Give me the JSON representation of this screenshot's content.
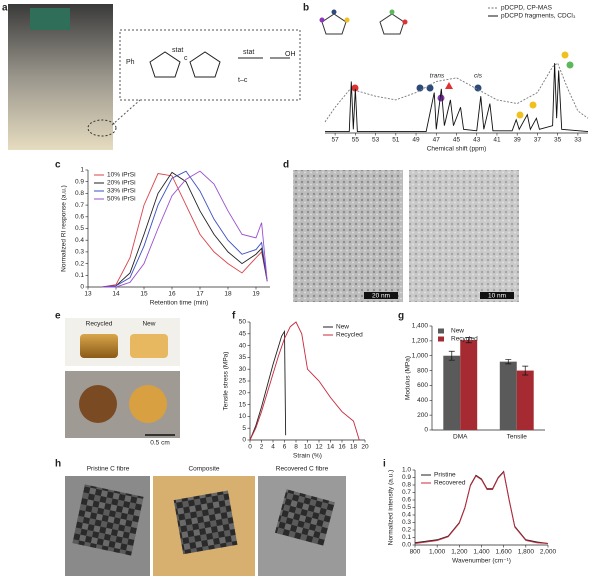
{
  "panels": [
    "a",
    "b",
    "c",
    "d",
    "e",
    "f",
    "g",
    "h",
    "i"
  ],
  "photo_labels": {
    "a": [
      "Ph",
      "stat",
      "c",
      "stat",
      "t–c",
      "OH"
    ],
    "d": [
      "20 nm",
      "10 nm"
    ],
    "e": [
      "Recycled",
      "New",
      "0.5 cm"
    ],
    "h": [
      "Pristine C fibre",
      "Composite",
      "Recovered C fibre"
    ]
  },
  "chart_data": [
    {
      "type": "line",
      "xlabel": "Chemical shift (ppm)",
      "xlim": [
        58,
        32
      ],
      "ylim": [
        0,
        1.4
      ],
      "xticks": [
        57,
        55,
        53,
        51,
        49,
        47,
        45,
        43,
        41,
        39,
        37,
        35,
        33
      ],
      "annotations": [
        "trans",
        "cis"
      ],
      "legend": "upper right",
      "series": [
        {
          "name": "pDCPD, CP-MAS",
          "color": "#777777",
          "style": "dashed",
          "x": [
            58,
            57,
            55.5,
            53,
            51,
            49,
            47,
            45,
            43,
            41,
            39,
            37,
            35.5,
            35,
            34,
            33,
            32
          ],
          "values": [
            0.15,
            0.35,
            0.6,
            0.5,
            0.45,
            0.55,
            0.7,
            0.75,
            0.6,
            0.45,
            0.4,
            0.55,
            0.9,
            0.95,
            0.6,
            0.3,
            0.2
          ]
        },
        {
          "name": "pDCPD fragments, CDCl₃",
          "color": "#111111",
          "style": "solid",
          "x": [
            58,
            55.6,
            55.4,
            55.2,
            55,
            54.8,
            48,
            47.2,
            47,
            46.5,
            46.2,
            45.6,
            45.3,
            44.6,
            44.3,
            43,
            42.6,
            42.3,
            41.7,
            41.4,
            39.5,
            39.1,
            38.8,
            38,
            37.7,
            37.1,
            36.8,
            35.5,
            35.3,
            35.1,
            34.9,
            34.6,
            32
          ],
          "values": [
            0.02,
            0.02,
            0.7,
            0.05,
            0.6,
            0.02,
            0.02,
            0.55,
            0.05,
            0.6,
            0.1,
            0.45,
            0.1,
            0.35,
            0.05,
            0.03,
            0.5,
            0.05,
            0.4,
            0.03,
            0.03,
            0.18,
            0.05,
            0.25,
            0.05,
            0.2,
            0.05,
            0.1,
            0.95,
            0.2,
            0.85,
            0.05,
            0.02
          ]
        }
      ]
    },
    {
      "type": "line",
      "xlabel": "Retention time (min)",
      "ylabel": "Normalized RI response (a.u.)",
      "xlim": [
        13,
        19.5
      ],
      "ylim": [
        0,
        1
      ],
      "xticks": [
        13,
        14,
        15,
        16,
        17,
        18,
        19
      ],
      "yticks": [
        0,
        0.1,
        0.2,
        0.3,
        0.4,
        0.5,
        0.6,
        0.7,
        0.8,
        0.9,
        1
      ],
      "legend": "upper left",
      "series": [
        {
          "name": "10% iPrSi",
          "color": "#d9434b",
          "style": "solid",
          "x": [
            13.5,
            14,
            14.5,
            15,
            15.5,
            16,
            16.5,
            17,
            17.5,
            18,
            18.5,
            19,
            19.2,
            19.4
          ],
          "values": [
            0,
            0.02,
            0.25,
            0.7,
            0.97,
            0.95,
            0.7,
            0.45,
            0.3,
            0.2,
            0.12,
            0.25,
            0.3,
            0.05
          ]
        },
        {
          "name": "20% iPrSi",
          "color": "#222222",
          "style": "solid",
          "x": [
            13.5,
            14,
            14.5,
            15,
            15.5,
            16,
            16.5,
            17,
            17.5,
            18,
            18.5,
            19,
            19.2,
            19.4
          ],
          "values": [
            0,
            0.01,
            0.12,
            0.45,
            0.8,
            0.98,
            0.9,
            0.65,
            0.45,
            0.3,
            0.2,
            0.28,
            0.33,
            0.05
          ]
        },
        {
          "name": "33% iPrSi",
          "color": "#3b4fc4",
          "style": "solid",
          "x": [
            13.5,
            14,
            14.5,
            15,
            15.5,
            16,
            16.5,
            17,
            17.5,
            18,
            18.5,
            19,
            19.2,
            19.4
          ],
          "values": [
            0,
            0.01,
            0.08,
            0.35,
            0.7,
            0.93,
            0.99,
            0.82,
            0.58,
            0.4,
            0.28,
            0.32,
            0.38,
            0.05
          ]
        },
        {
          "name": "50% iPrSi",
          "color": "#9a4fd0",
          "style": "solid",
          "x": [
            13.5,
            14,
            14.5,
            15,
            15.5,
            16,
            16.5,
            17,
            17.5,
            18,
            18.5,
            19,
            19.2,
            19.4
          ],
          "values": [
            0,
            0,
            0.04,
            0.2,
            0.5,
            0.78,
            0.92,
            0.99,
            0.88,
            0.65,
            0.45,
            0.42,
            0.55,
            0.05
          ]
        }
      ]
    },
    {
      "type": "line",
      "xlabel": "Strain (%)",
      "ylabel": "Tensile stress (MPa)",
      "xlim": [
        0,
        20
      ],
      "ylim": [
        0,
        50
      ],
      "xticks": [
        0,
        2,
        4,
        6,
        8,
        10,
        12,
        14,
        16,
        18,
        20
      ],
      "yticks": [
        0,
        5,
        10,
        15,
        20,
        25,
        30,
        35,
        40,
        45,
        50
      ],
      "legend": "upper right",
      "series": [
        {
          "name": "New",
          "color": "#222222",
          "style": "solid",
          "x": [
            0,
            1,
            2,
            3,
            4,
            5,
            5.5,
            6,
            6.2
          ],
          "values": [
            0,
            6,
            14,
            23,
            32,
            40,
            44,
            46,
            2
          ]
        },
        {
          "name": "Recycled",
          "color": "#c8283a",
          "style": "solid",
          "x": [
            0,
            1,
            2,
            3,
            4,
            5,
            6,
            7,
            8,
            9,
            10,
            12,
            14,
            16,
            18,
            19
          ],
          "values": [
            0,
            5,
            12,
            20,
            28,
            36,
            43,
            48,
            50,
            45,
            30,
            25,
            18,
            12,
            8,
            0
          ]
        }
      ]
    },
    {
      "type": "bar",
      "ylabel": "Modulus (MPa)",
      "categories": [
        "DMA",
        "Tensile"
      ],
      "ylim": [
        0,
        1400
      ],
      "yticks": [
        0,
        200,
        400,
        600,
        800,
        {
          "value": 1000,
          "label": "1,000"
        },
        {
          "value": 1200,
          "label": "1,200"
        },
        {
          "value": 1400,
          "label": "1,400"
        }
      ],
      "legend": "upper left",
      "series": [
        {
          "name": "New",
          "color": "#5a5a5a",
          "values": [
            1000,
            920
          ],
          "errors": [
            60,
            30
          ]
        },
        {
          "name": "Recycled",
          "color": "#a52a32",
          "values": [
            1210,
            800
          ],
          "errors": [
            35,
            60
          ]
        }
      ]
    },
    {
      "type": "line",
      "xlabel": "Wavenumber (cm⁻¹)",
      "ylabel": "Normalized intensity (a.u.)",
      "xlim": [
        800,
        2000
      ],
      "ylim": [
        0,
        1
      ],
      "xticks": [
        800,
        {
          "value": 1000,
          "label": "1,000"
        },
        {
          "value": 1200,
          "label": "1,200"
        },
        {
          "value": 1400,
          "label": "1,400"
        },
        {
          "value": 1600,
          "label": "1,600"
        },
        {
          "value": 1800,
          "label": "1,800"
        },
        {
          "value": 2000,
          "label": "2,000"
        }
      ],
      "yticks": [
        {
          "value": 0,
          "label": "0.0"
        },
        0.1,
        0.2,
        0.3,
        0.4,
        0.5,
        0.6,
        0.7,
        0.8,
        0.9,
        {
          "value": 1,
          "label": "1.0"
        }
      ],
      "legend": "upper left",
      "series": [
        {
          "name": "Pristine",
          "color": "#222222",
          "style": "solid",
          "x": [
            800,
            900,
            1000,
            1100,
            1200,
            1250,
            1300,
            1350,
            1400,
            1450,
            1500,
            1550,
            1600,
            1650,
            1700,
            1800,
            1900,
            2000
          ],
          "values": [
            0.03,
            0.05,
            0.07,
            0.12,
            0.3,
            0.5,
            0.8,
            0.93,
            0.88,
            0.75,
            0.75,
            0.9,
            0.98,
            0.6,
            0.25,
            0.07,
            0.04,
            0.02
          ]
        },
        {
          "name": "Recovered",
          "color": "#c8283a",
          "style": "solid",
          "x": [
            800,
            900,
            1000,
            1100,
            1200,
            1250,
            1300,
            1350,
            1400,
            1450,
            1500,
            1550,
            1600,
            1650,
            1700,
            1800,
            1900,
            2000
          ],
          "values": [
            0.02,
            0.04,
            0.06,
            0.11,
            0.29,
            0.49,
            0.79,
            0.92,
            0.87,
            0.74,
            0.74,
            0.89,
            0.97,
            0.59,
            0.24,
            0.06,
            0.03,
            0.02
          ]
        }
      ]
    }
  ]
}
